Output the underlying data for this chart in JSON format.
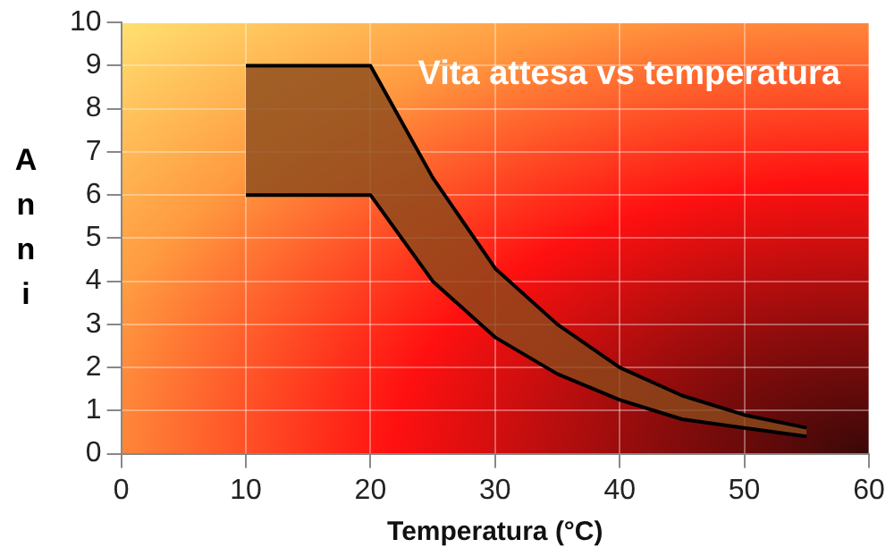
{
  "chart_data": {
    "type": "line",
    "title": "Vita attesa vs temperatura",
    "xlabel": "Temperatura (°C)",
    "ylabel": "Anni",
    "x": [
      10,
      20,
      25,
      30,
      35,
      40,
      45,
      50,
      55
    ],
    "series": [
      {
        "type": "line",
        "color": "#000000",
        "values": [
          6,
          6,
          4.0,
          2.7,
          1.85,
          1.25,
          0.8,
          0.6,
          0.4
        ]
      },
      {
        "type": "area",
        "color": "#8a4a1c",
        "values": [
          9,
          9,
          6.4,
          4.3,
          3.0,
          2.0,
          1.35,
          0.9,
          0.6
        ]
      }
    ],
    "xlim": [
      0,
      60
    ],
    "xticks": [
      0,
      10,
      20,
      30,
      40,
      50,
      60
    ],
    "ylim": [
      0,
      10
    ],
    "yticks": [
      0,
      1,
      2,
      3,
      4,
      5,
      6,
      7,
      8,
      9,
      10
    ],
    "grid": true,
    "legend": false,
    "marker": "none",
    "line_style": "solid"
  }
}
